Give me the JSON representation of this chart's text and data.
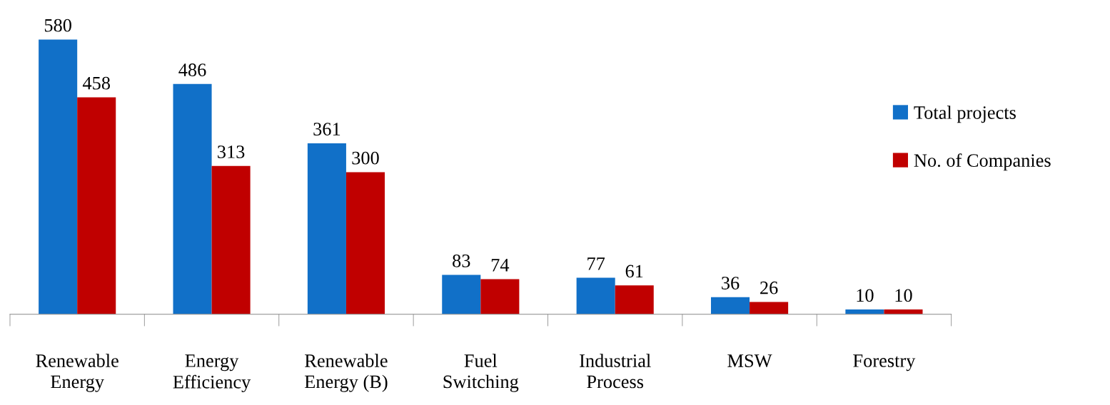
{
  "chart_data": {
    "type": "bar",
    "categories": [
      "Renewable\nEnergy",
      "Energy\nEfficiency",
      "Renewable\nEnergy (B)",
      "Fuel\nSwitching",
      "Industrial\nProcess",
      "MSW",
      "Forestry"
    ],
    "series": [
      {
        "name": "Total projects",
        "color": "#1170c8",
        "values": [
          580,
          486,
          361,
          83,
          77,
          36,
          10
        ]
      },
      {
        "name": "No. of Companies",
        "color": "#c00000",
        "values": [
          458,
          313,
          300,
          74,
          61,
          26,
          10
        ]
      }
    ],
    "data_labels": true,
    "legend": "right",
    "grid": false
  }
}
